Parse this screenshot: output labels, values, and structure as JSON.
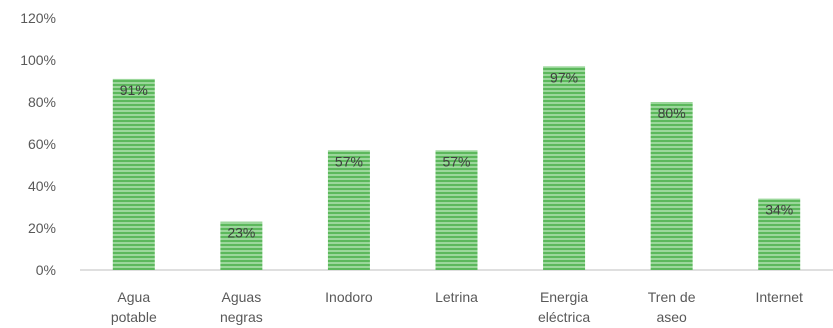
{
  "chart_data": {
    "type": "bar",
    "categories": [
      [
        "Agua",
        "potable"
      ],
      [
        "Aguas",
        "negras"
      ],
      [
        "Inodoro"
      ],
      [
        "Letrina"
      ],
      [
        "Energia",
        "eléctrica"
      ],
      [
        "Tren de",
        "aseo"
      ],
      [
        "Internet"
      ]
    ],
    "values": [
      91,
      23,
      57,
      57,
      97,
      80,
      34
    ],
    "data_labels": [
      "91%",
      "23%",
      "57%",
      "57%",
      "97%",
      "80%",
      "34%"
    ],
    "y_ticks": [
      "0%",
      "20%",
      "40%",
      "60%",
      "80%",
      "100%",
      "120%"
    ],
    "ylim": [
      0,
      120
    ],
    "bar_color": "#5cb85c",
    "bar_stripe_color": "#8fd18f",
    "axis_color": "#bfbfbf",
    "gridlines": false,
    "title": "",
    "xlabel": "",
    "ylabel": ""
  }
}
